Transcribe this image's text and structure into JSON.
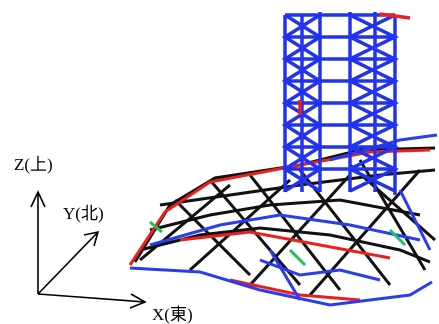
{
  "axes": {
    "z": "Z(上)",
    "y": "Y(北)",
    "x": "X(東)"
  }
}
